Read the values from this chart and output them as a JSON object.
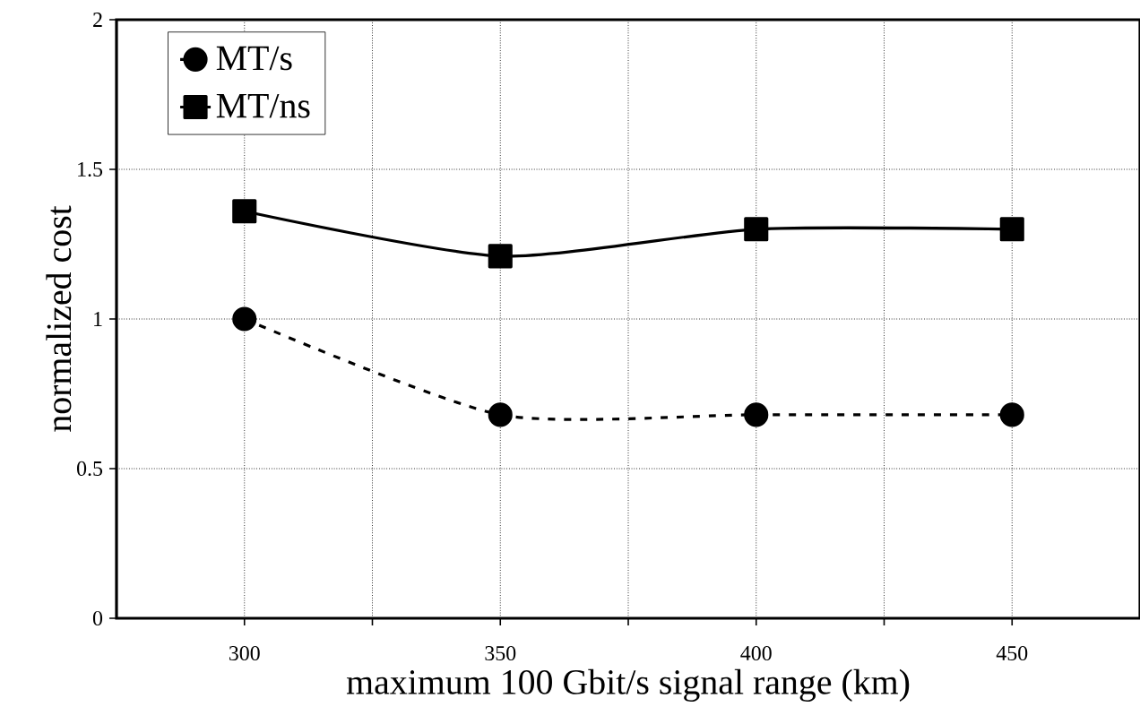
{
  "chart_data": {
    "type": "line",
    "xlabel": "maximum 100 Gbit/s signal range (km)",
    "ylabel": "normalized cost",
    "x": [
      300,
      350,
      400,
      450
    ],
    "series": [
      {
        "name": "MT/s",
        "color": "#000000",
        "values": [
          1.0,
          0.68,
          0.68,
          0.68
        ],
        "marker": "circle",
        "line_style": "dashed"
      },
      {
        "name": "MT/ns",
        "color": "#000000",
        "values": [
          1.36,
          1.21,
          1.3,
          1.3
        ],
        "marker": "square",
        "line_style": "solid"
      }
    ],
    "xlim": [
      275,
      475
    ],
    "ylim": [
      0,
      2
    ],
    "xticks": [
      300,
      {
        "value": 325,
        "label": null
      },
      350,
      {
        "value": 375,
        "label": null
      },
      400,
      {
        "value": 425,
        "label": null
      },
      450
    ],
    "yticks": [
      0,
      0.5,
      1,
      1.5,
      2
    ],
    "grid": true,
    "legend": "top left"
  }
}
